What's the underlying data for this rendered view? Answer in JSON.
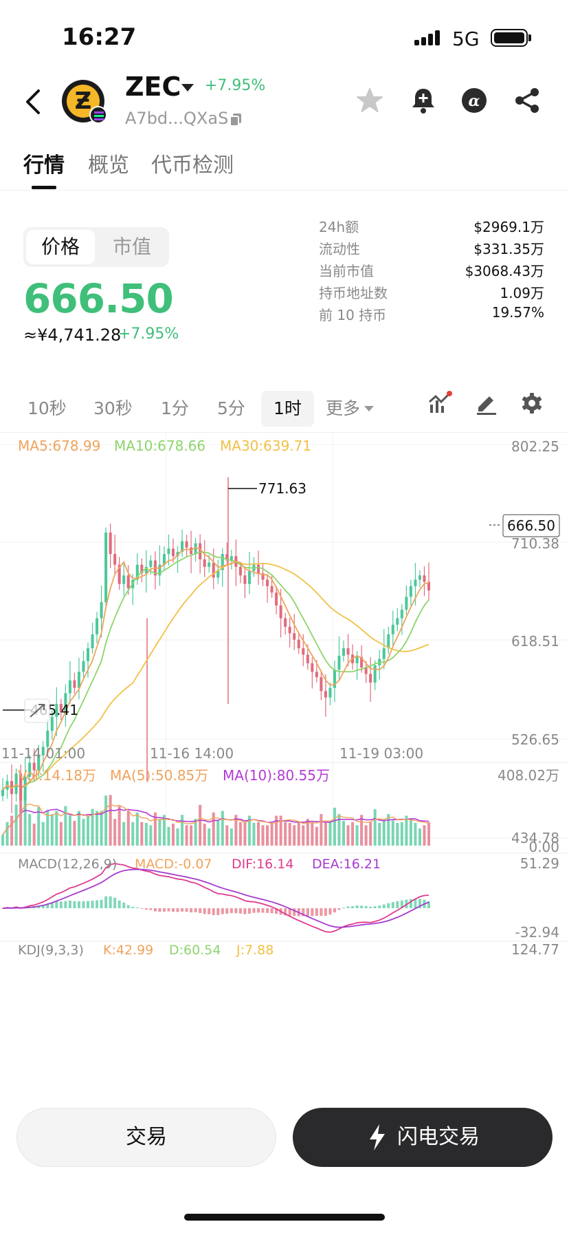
{
  "status_bar": {
    "time": "16:27",
    "network": "5G"
  },
  "header": {
    "coin_name": "ZEC",
    "change": "+7.95%",
    "address": "A7bd...QXaS",
    "icons": [
      "back-icon",
      "star-icon",
      "bell-plus-icon",
      "alpha-icon",
      "share-icon",
      "copy-icon"
    ]
  },
  "tabs": [
    {
      "label": "行情",
      "active": true
    },
    {
      "label": "概览",
      "active": false
    },
    {
      "label": "代币检测",
      "active": false
    }
  ],
  "price_panel": {
    "seg_price": "价格",
    "seg_mcap": "市值",
    "price": "666.50",
    "price_cny": "≈¥4,741.28",
    "change": "+7.95%"
  },
  "stats": [
    {
      "label": "24h额",
      "value": "$2969.1万"
    },
    {
      "label": "流动性",
      "value": "$331.35万"
    },
    {
      "label": "当前市值",
      "value": "$3068.43万"
    },
    {
      "label": "持币地址数",
      "value": "1.09万"
    },
    {
      "label": "前 10 持币",
      "value": "19.57%"
    }
  ],
  "timeframes": [
    {
      "label": "10秒",
      "active": false
    },
    {
      "label": "30秒",
      "active": false
    },
    {
      "label": "1分",
      "active": false
    },
    {
      "label": "5分",
      "active": false
    },
    {
      "label": "1时",
      "active": true
    },
    {
      "label": "更多",
      "active": false
    }
  ],
  "chart_data": {
    "type": "candlestick",
    "ma_legend": {
      "ma5": "MA5:678.99",
      "ma10": "MA10:678.66",
      "ma30": "MA30:639.71"
    },
    "y_ticks": [
      "802.25",
      "710.38",
      "618.51",
      "526.65",
      "434.78"
    ],
    "ylim": [
      434.78,
      802.25
    ],
    "x_ticks": [
      "11-14 01:00",
      "11-16 14:00",
      "11-19 03:00"
    ],
    "high_label": "771.63",
    "low_label": "465.41",
    "current_price": "666.50",
    "volume": {
      "vol": "Vol:14.18万",
      "ma5": "MA(5):50.85万",
      "ma10": "MA(10):80.55万",
      "y_max": "408.02万",
      "y_min": "0.00"
    },
    "macd": {
      "title": "MACD(12,26,9)",
      "macd": "MACD:-0.07",
      "dif": "DIF:16.14",
      "dea": "DEA:16.21",
      "y_max": "51.29",
      "y_min": "-32.94"
    },
    "kdj": {
      "title": "KDJ(9,3,3)",
      "k": "K:42.99",
      "d": "D:60.54",
      "j": "J:7.88",
      "y_max": "124.77"
    },
    "closes": [
      480,
      488,
      476,
      495,
      470,
      492,
      505,
      498,
      512,
      520,
      535,
      548,
      560,
      552,
      570,
      582,
      575,
      590,
      600,
      612,
      625,
      640,
      655,
      720,
      700,
      690,
      672,
      680,
      668,
      676,
      690,
      682,
      688,
      694,
      680,
      690,
      700,
      705,
      698,
      702,
      712,
      706,
      700,
      710,
      695,
      688,
      692,
      678,
      685,
      700,
      694,
      698,
      688,
      680,
      672,
      684,
      690,
      682,
      676,
      670,
      664,
      652,
      640,
      632,
      626,
      620,
      612,
      606,
      598,
      590,
      585,
      572,
      566,
      575,
      592,
      605,
      612,
      606,
      598,
      604,
      594,
      588,
      580,
      596,
      602,
      612,
      625,
      634,
      640,
      648,
      660,
      670,
      676,
      680,
      674,
      666
    ],
    "colors": {
      "up": "#4cc89a",
      "down": "#e26b7c",
      "ma5": "#f0a35c",
      "ma10": "#8ed46b",
      "ma30": "#f1c146",
      "vol_ma5": "#f0a35c",
      "vol_ma10": "#b33ad4",
      "dif": "#e03a8c",
      "dea": "#a53ad0"
    }
  },
  "buttons": {
    "trade": "交易",
    "flash": "闪电交易"
  }
}
